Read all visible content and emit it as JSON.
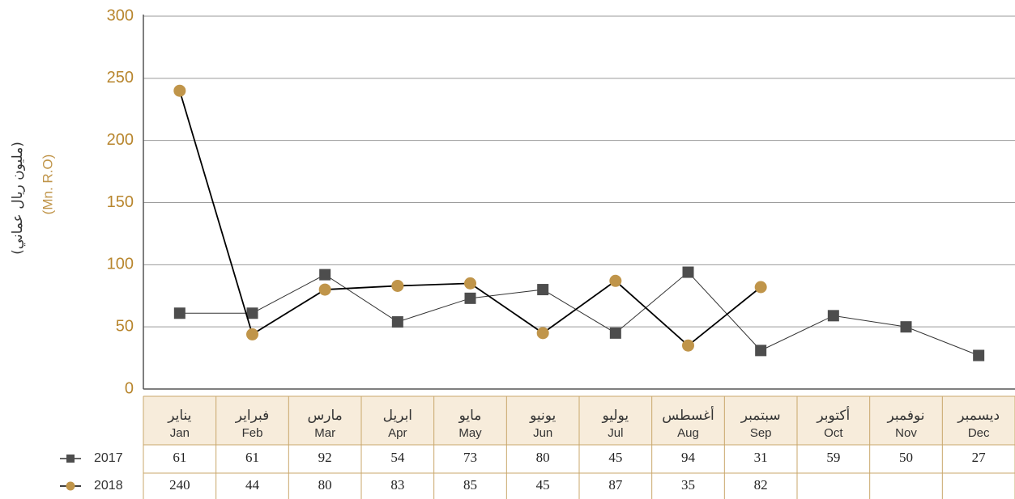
{
  "chart_data": {
    "type": "line",
    "y_axis_title": "(مليون ريال عماني)",
    "y_axis_unit": "(Mn. R.O)",
    "categories": [
      "Jan",
      "Feb",
      "Mar",
      "Apr",
      "May",
      "Jun",
      "Jul",
      "Aug",
      "Sep",
      "Oct",
      "Nov",
      "Dec"
    ],
    "categories_ar": [
      "يناير",
      "فبراير",
      "مارس",
      "ابريل",
      "مايو",
      "يونيو",
      "يوليو",
      "أغسطس",
      "سبتمبر",
      "أكتوبر",
      "نوفمبر",
      "ديسمبر"
    ],
    "series": [
      {
        "name": "2017",
        "color": "#4d4d4d",
        "line_color": "#333333",
        "marker": "square",
        "values": [
          61,
          61,
          92,
          54,
          73,
          80,
          45,
          94,
          31,
          59,
          50,
          27
        ]
      },
      {
        "name": "2018",
        "color": "#c0954a",
        "line_color": "#000000",
        "marker": "circle",
        "values": [
          240,
          44,
          80,
          83,
          85,
          45,
          87,
          35,
          82,
          null,
          null,
          null
        ]
      }
    ],
    "ylim": [
      0,
      300
    ],
    "yticks": [
      0,
      50,
      100,
      150,
      200,
      250,
      300
    ],
    "grid": true
  }
}
